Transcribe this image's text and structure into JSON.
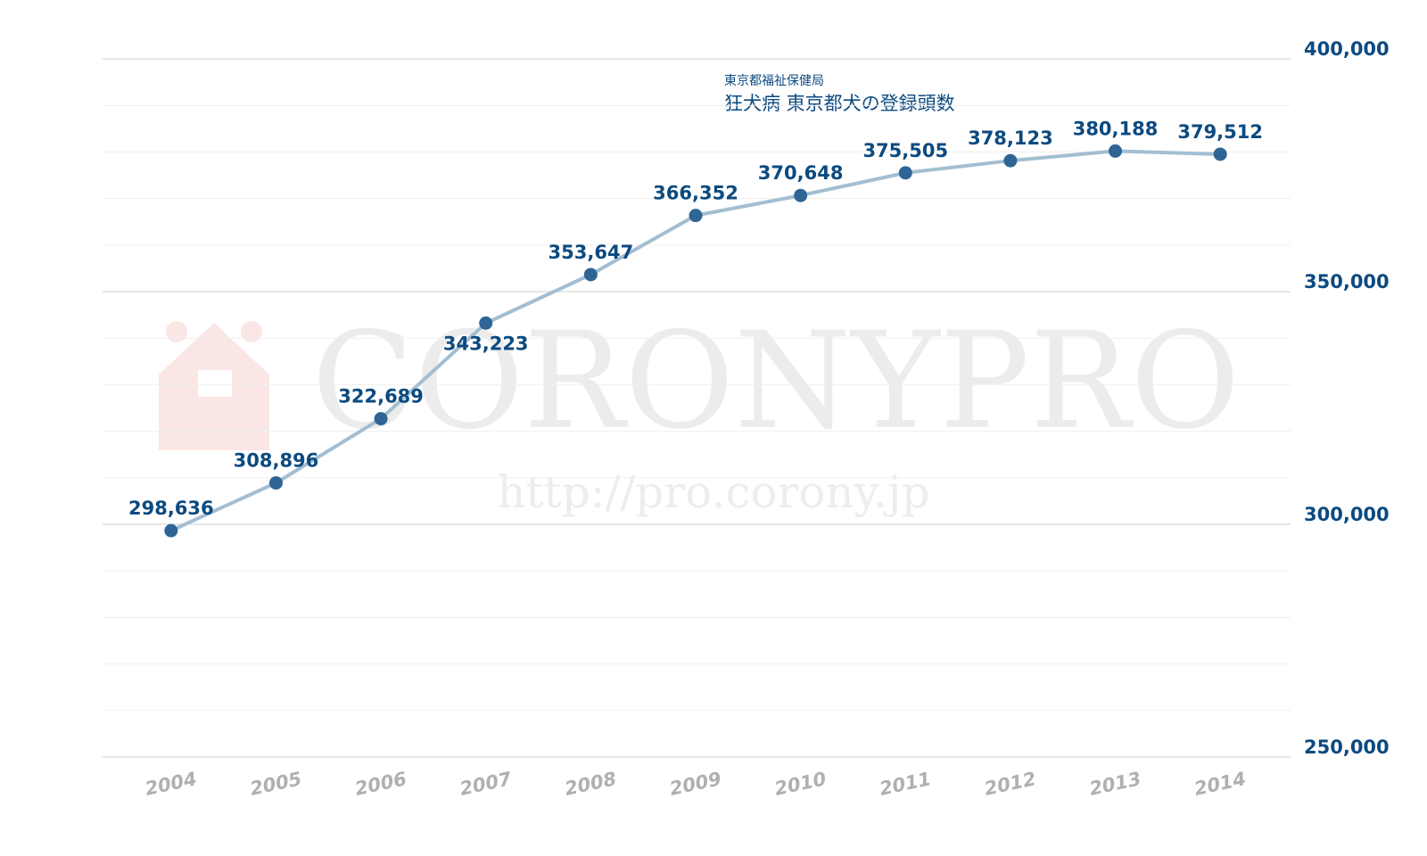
{
  "chart_data": {
    "type": "line",
    "title": "狂犬病  東京都犬の登録頭数",
    "source": "東京都福祉保健局",
    "watermark": "CORONYPRO",
    "watermark_url": "http://pro.corony.jp",
    "categories": [
      "2004",
      "2005",
      "2006",
      "2007",
      "2008",
      "2009",
      "2010",
      "2011",
      "2012",
      "2013",
      "2014"
    ],
    "series": [
      {
        "name": "登録頭数",
        "color": "#a3bed1",
        "marker_color": "#2f6594",
        "values": [
          298636,
          308896,
          322689,
          343223,
          353647,
          366352,
          370648,
          375505,
          378123,
          380188,
          379512
        ],
        "value_labels": [
          "298,636",
          "308,896",
          "322,689",
          "343,223",
          "353,647",
          "366,352",
          "370,648",
          "375,505",
          "378,123",
          "380,188",
          "379,512"
        ]
      }
    ],
    "ylim": [
      250000,
      400000
    ],
    "yticks": [
      {
        "value": 250000,
        "label": "250,000"
      },
      {
        "value": 300000,
        "label": "300,000"
      },
      {
        "value": 350000,
        "label": "350,000"
      },
      {
        "value": 400000,
        "label": "400,000"
      }
    ],
    "yminorticks": [
      260000,
      270000,
      280000,
      290000,
      310000,
      320000,
      330000,
      340000,
      360000,
      370000,
      380000,
      390000
    ],
    "grid": true
  }
}
